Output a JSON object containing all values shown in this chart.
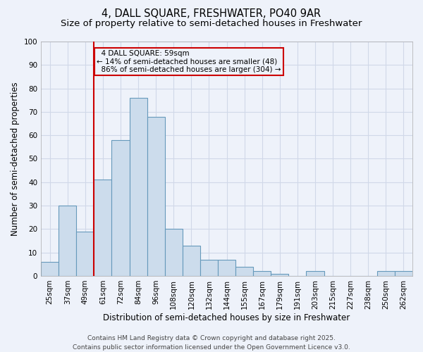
{
  "title": "4, DALL SQUARE, FRESHWATER, PO40 9AR",
  "subtitle": "Size of property relative to semi-detached houses in Freshwater",
  "xlabel": "Distribution of semi-detached houses by size in Freshwater",
  "ylabel": "Number of semi-detached properties",
  "categories": [
    "25sqm",
    "37sqm",
    "49sqm",
    "61sqm",
    "72sqm",
    "84sqm",
    "96sqm",
    "108sqm",
    "120sqm",
    "132sqm",
    "144sqm",
    "155sqm",
    "167sqm",
    "179sqm",
    "191sqm",
    "203sqm",
    "215sqm",
    "227sqm",
    "238sqm",
    "250sqm",
    "262sqm"
  ],
  "values": [
    6,
    30,
    19,
    41,
    58,
    76,
    68,
    20,
    13,
    7,
    7,
    4,
    2,
    1,
    0,
    2,
    0,
    0,
    0,
    2,
    2
  ],
  "bar_color": "#ccdcec",
  "bar_edge_color": "#6699bb",
  "background_color": "#eef2fa",
  "grid_color": "#d0d8e8",
  "ylim": [
    0,
    100
  ],
  "yticks": [
    0,
    10,
    20,
    30,
    40,
    50,
    60,
    70,
    80,
    90,
    100
  ],
  "marker_line_index": 3,
  "marker_label": "4 DALL SQUARE: 59sqm",
  "pct_smaller": "14% of semi-detached houses are smaller (48)",
  "pct_larger": "86% of semi-detached houses are larger (304)",
  "annotation_box_color": "#cc0000",
  "footer": "Contains HM Land Registry data © Crown copyright and database right 2025.\nContains public sector information licensed under the Open Government Licence v3.0.",
  "title_fontsize": 10.5,
  "subtitle_fontsize": 9.5,
  "label_fontsize": 8.5,
  "tick_fontsize": 7.5,
  "annot_fontsize": 7.5,
  "footer_fontsize": 6.5
}
